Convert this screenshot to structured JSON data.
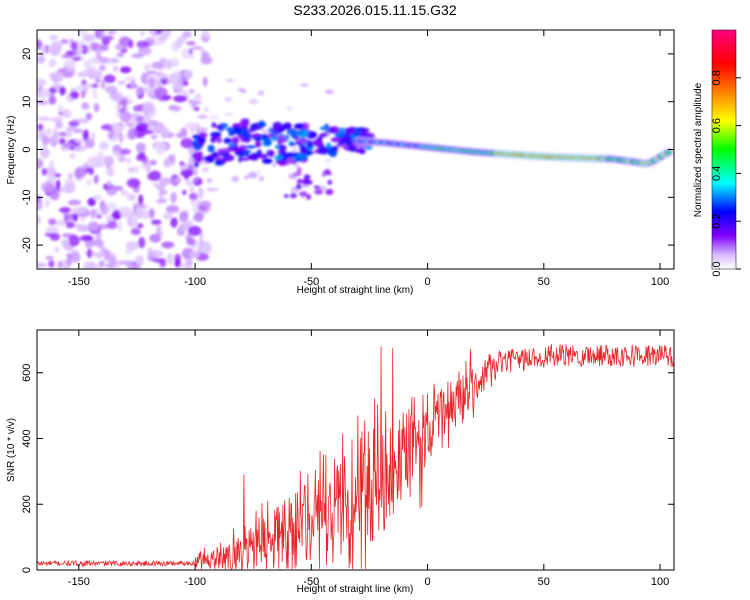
{
  "title": "S233.2026.015.11.15.G32",
  "chart_data": [
    {
      "type": "heatmap",
      "title": "S233.2026.015.11.15.G32",
      "xlabel": "Height of straight line (km)",
      "ylabel": "Frequency (Hz)",
      "xlim": [
        -168,
        106
      ],
      "ylim": [
        -25,
        25
      ],
      "xticks": [
        -150,
        -100,
        -50,
        0,
        50,
        100
      ],
      "yticks": [
        -20,
        -10,
        0,
        10,
        20
      ],
      "colorbar": {
        "label": "Normalized spectral amplitude",
        "range": [
          0,
          1
        ],
        "ticks": [
          "0.0",
          "0.2",
          "0.4",
          "0.6",
          "0.8"
        ],
        "colors": [
          "#ffffff",
          "#e0c0ff",
          "#8000ff",
          "#0000ff",
          "#00ffff",
          "#00ff00",
          "#ffff00",
          "#ff8000",
          "#ff0000",
          "#ff0080"
        ]
      },
      "ridge": {
        "description_points": [
          {
            "x": -100,
            "f": 0.0,
            "spread": 5
          },
          {
            "x": -80,
            "f": 2.0,
            "spread": 4
          },
          {
            "x": -60,
            "f": 1.0,
            "spread": 4
          },
          {
            "x": -40,
            "f": 2.0,
            "spread": 3
          },
          {
            "x": -20,
            "f": 1.5,
            "spread": 2
          },
          {
            "x": 0,
            "f": 0.5,
            "spread": 1.2
          },
          {
            "x": 20,
            "f": -0.5,
            "spread": 1.0
          },
          {
            "x": 50,
            "f": -1.5,
            "spread": 0.8
          },
          {
            "x": 80,
            "f": -2.0,
            "spread": 0.8
          },
          {
            "x": 95,
            "f": -3.0,
            "spread": 0.8
          },
          {
            "x": 104,
            "f": -0.5,
            "spread": 0.8
          }
        ],
        "peak_amplitude_range": [
          30,
          60
        ]
      }
    },
    {
      "type": "line",
      "xlabel": "Height of straight line (km)",
      "ylabel": "SNR (10 * v/v)",
      "xlim": [
        -168,
        106
      ],
      "ylim": [
        0,
        730
      ],
      "xticks": [
        -150,
        -100,
        -50,
        0,
        50,
        100
      ],
      "yticks": [
        0,
        200,
        400,
        600
      ],
      "color": "#e8262a",
      "trend": {
        "x": [
          -168,
          -110,
          -100,
          -90,
          -80,
          -70,
          -60,
          -50,
          -40,
          -30,
          -20,
          -10,
          0,
          10,
          20,
          30,
          50,
          80,
          106
        ],
        "y": [
          20,
          20,
          22,
          35,
          55,
          75,
          110,
          150,
          200,
          230,
          260,
          320,
          420,
          500,
          560,
          630,
          650,
          655,
          650
        ]
      },
      "spikes": [
        {
          "x": -79,
          "y": 290
        },
        {
          "x": -30,
          "y": 470
        },
        {
          "x": -20,
          "y": 680
        },
        {
          "x": -15,
          "y": 675
        },
        {
          "x": -8,
          "y": 490
        }
      ]
    }
  ]
}
